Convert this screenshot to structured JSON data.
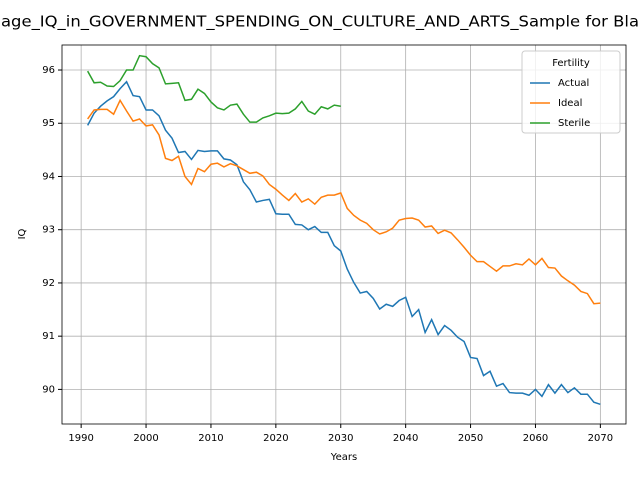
{
  "chart_data": {
    "type": "line",
    "title": "age_IQ_in_GOVERNMENT_SPENDING_ON_CULTURE_AND_ARTS_Sample for Bla",
    "x_label": "Years",
    "y_label": "IQ",
    "x": [
      1991,
      1992,
      1993,
      1994,
      1995,
      1996,
      1997,
      1998,
      1999,
      2000,
      2001,
      2002,
      2003,
      2004,
      2005,
      2006,
      2007,
      2008,
      2009,
      2010,
      2011,
      2012,
      2013,
      2014,
      2015,
      2016,
      2017,
      2018,
      2019,
      2020,
      2021,
      2022,
      2023,
      2024,
      2025,
      2026,
      2027,
      2028,
      2029,
      2030,
      2031,
      2032,
      2033,
      2034,
      2035,
      2036,
      2037,
      2038,
      2039,
      2040,
      2041,
      2042,
      2043,
      2044,
      2045,
      2046,
      2047,
      2048,
      2049,
      2050,
      2051,
      2052,
      2053,
      2054,
      2055,
      2056,
      2057,
      2058,
      2059,
      2060,
      2061,
      2062,
      2063,
      2064,
      2065,
      2066,
      2067,
      2068,
      2069,
      2070
    ],
    "series": [
      {
        "name": "Actual",
        "color": "#1f77b4",
        "values": [
          94.96,
          95.19,
          95.32,
          95.42,
          95.5,
          95.65,
          95.78,
          95.52,
          95.5,
          95.25,
          95.25,
          95.14,
          94.87,
          94.72,
          94.45,
          94.47,
          94.32,
          94.49,
          94.47,
          94.48,
          94.48,
          94.33,
          94.31,
          94.22,
          93.9,
          93.75,
          93.52,
          93.55,
          93.57,
          93.3,
          93.29,
          93.29,
          93.1,
          93.09,
          93.0,
          93.06,
          92.95,
          92.95,
          92.7,
          92.6,
          92.26,
          92.01,
          91.81,
          91.84,
          91.71,
          91.51,
          91.6,
          91.56,
          91.67,
          91.73,
          91.37,
          91.5,
          91.07,
          91.31,
          91.03,
          91.2,
          91.11,
          90.98,
          90.9,
          90.6,
          90.58,
          90.26,
          90.34,
          90.06,
          90.11,
          89.94,
          89.93,
          89.93,
          89.89,
          90.0,
          89.87,
          90.09,
          89.93,
          90.09,
          89.94,
          90.03,
          89.91,
          89.91,
          89.76,
          89.72
        ]
      },
      {
        "name": "Ideal",
        "color": "#ff7f0e",
        "values": [
          95.08,
          95.25,
          95.26,
          95.26,
          95.17,
          95.43,
          95.23,
          95.04,
          95.08,
          94.95,
          94.97,
          94.78,
          94.34,
          94.3,
          94.38,
          94.0,
          93.85,
          94.15,
          94.09,
          94.23,
          94.25,
          94.18,
          94.24,
          94.2,
          94.13,
          94.06,
          94.08,
          94.01,
          93.85,
          93.76,
          93.65,
          93.55,
          93.68,
          93.52,
          93.58,
          93.48,
          93.61,
          93.65,
          93.65,
          93.69,
          93.4,
          93.27,
          93.18,
          93.12,
          93.0,
          92.92,
          92.96,
          93.03,
          93.18,
          93.21,
          93.22,
          93.18,
          93.05,
          93.07,
          92.93,
          92.99,
          92.94,
          92.81,
          92.67,
          92.52,
          92.4,
          92.4,
          92.31,
          92.22,
          92.32,
          92.32,
          92.36,
          92.34,
          92.45,
          92.34,
          92.46,
          92.29,
          92.28,
          92.13,
          92.04,
          91.96,
          91.84,
          91.8,
          91.61,
          91.62
        ]
      },
      {
        "name": "Sterile",
        "color": "#2ca02c",
        "values": [
          95.98,
          95.76,
          95.77,
          95.7,
          95.69,
          95.8,
          96.0,
          96.0,
          96.27,
          96.25,
          96.12,
          96.04,
          95.74,
          95.75,
          95.76,
          95.43,
          95.45,
          95.64,
          95.56,
          95.4,
          95.29,
          95.25,
          95.34,
          95.36,
          95.17,
          95.02,
          95.02,
          95.1,
          95.14,
          95.19,
          95.18,
          95.19,
          95.27,
          95.41,
          95.23,
          95.17,
          95.31,
          95.27,
          95.34,
          95.32,
          null,
          null,
          null,
          null,
          null,
          null,
          null,
          null,
          null,
          null,
          null,
          null,
          null,
          null,
          null,
          null,
          null,
          null,
          null,
          null,
          null,
          null,
          null,
          null,
          null,
          null,
          null,
          null,
          null,
          null,
          null,
          null,
          null,
          null,
          null,
          null,
          null,
          null,
          null,
          null
        ]
      }
    ],
    "xlim": [
      1987.05,
      2073.95
    ],
    "ylim": [
      89.35,
      96.47
    ],
    "xticks": [
      1990,
      2000,
      2010,
      2020,
      2030,
      2040,
      2050,
      2060,
      2070
    ],
    "yticks": [
      90,
      91,
      92,
      93,
      94,
      95,
      96
    ],
    "grid": true,
    "legend_title": "Fertility",
    "legend_loc": "upper right"
  }
}
